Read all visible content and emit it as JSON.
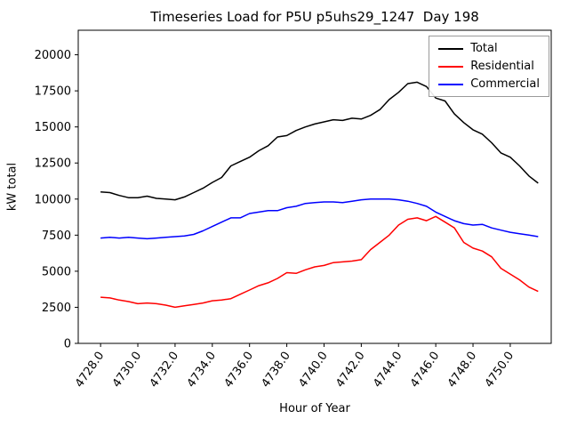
{
  "chart_data": {
    "type": "line",
    "title": "Timeseries Load for P5U p5uhs29_1247  Day 198",
    "xlabel": "Hour of Year",
    "ylabel": "kW total",
    "grid": false,
    "legend_position": "upper right",
    "xlim": [
      4726.8,
      4752.2
    ],
    "ylim": [
      0,
      21700
    ],
    "xticks": [
      4728,
      4730,
      4732,
      4734,
      4736,
      4738,
      4740,
      4742,
      4744,
      4746,
      4748,
      4750
    ],
    "xtick_labels": [
      "4728.0",
      "4730.0",
      "4732.0",
      "4734.0",
      "4736.0",
      "4738.0",
      "4740.0",
      "4742.0",
      "4744.0",
      "4746.0",
      "4748.0",
      "4750.0"
    ],
    "yticks": [
      0,
      2500,
      5000,
      7500,
      10000,
      12500,
      15000,
      17500,
      20000
    ],
    "ytick_labels": [
      "0",
      "2500",
      "5000",
      "7500",
      "10000",
      "12500",
      "15000",
      "17500",
      "20000"
    ],
    "x": [
      4728.0,
      4728.5,
      4729.0,
      4729.5,
      4730.0,
      4730.5,
      4731.0,
      4731.5,
      4732.0,
      4732.5,
      4733.0,
      4733.5,
      4734.0,
      4734.5,
      4735.0,
      4735.5,
      4736.0,
      4736.5,
      4737.0,
      4737.5,
      4738.0,
      4738.5,
      4739.0,
      4739.5,
      4740.0,
      4740.5,
      4741.0,
      4741.5,
      4742.0,
      4742.5,
      4743.0,
      4743.5,
      4744.0,
      4744.5,
      4745.0,
      4745.5,
      4746.0,
      4746.5,
      4747.0,
      4747.5,
      4748.0,
      4748.5,
      4749.0,
      4749.5,
      4750.0,
      4750.5,
      4751.0,
      4751.5
    ],
    "series": [
      {
        "name": "Total",
        "color": "#000000",
        "values": [
          10500,
          10450,
          10250,
          10100,
          10100,
          10200,
          10050,
          10000,
          9950,
          10150,
          10450,
          10750,
          11150,
          11500,
          12300,
          12600,
          12900,
          13350,
          13700,
          14300,
          14400,
          14750,
          15000,
          15200,
          15350,
          15500,
          15450,
          15600,
          15550,
          15800,
          16200,
          16900,
          17400,
          18000,
          18100,
          17800,
          17000,
          16800,
          15900,
          15300,
          14800,
          14500,
          13900,
          13200,
          12900,
          12300,
          11600,
          11100
        ]
      },
      {
        "name": "Residential",
        "color": "#ff0000",
        "values": [
          3200,
          3150,
          3000,
          2900,
          2750,
          2800,
          2750,
          2650,
          2500,
          2600,
          2700,
          2800,
          2950,
          3000,
          3100,
          3400,
          3700,
          4000,
          4200,
          4500,
          4900,
          4850,
          5100,
          5300,
          5400,
          5600,
          5650,
          5700,
          5800,
          6500,
          7000,
          7500,
          8200,
          8600,
          8700,
          8500,
          8800,
          8400,
          8000,
          7000,
          6600,
          6400,
          6000,
          5200,
          4800,
          4400,
          3900,
          3600
        ]
      },
      {
        "name": "Commercial",
        "color": "#0000ff",
        "values": [
          7300,
          7350,
          7300,
          7350,
          7300,
          7250,
          7300,
          7350,
          7400,
          7450,
          7550,
          7800,
          8100,
          8400,
          8700,
          8700,
          9000,
          9100,
          9200,
          9200,
          9400,
          9500,
          9700,
          9750,
          9800,
          9800,
          9750,
          9850,
          9950,
          10000,
          10000,
          10000,
          9950,
          9850,
          9700,
          9500,
          9100,
          8800,
          8500,
          8300,
          8200,
          8250,
          8000,
          7850,
          7700,
          7600,
          7500,
          7400
        ]
      }
    ]
  }
}
